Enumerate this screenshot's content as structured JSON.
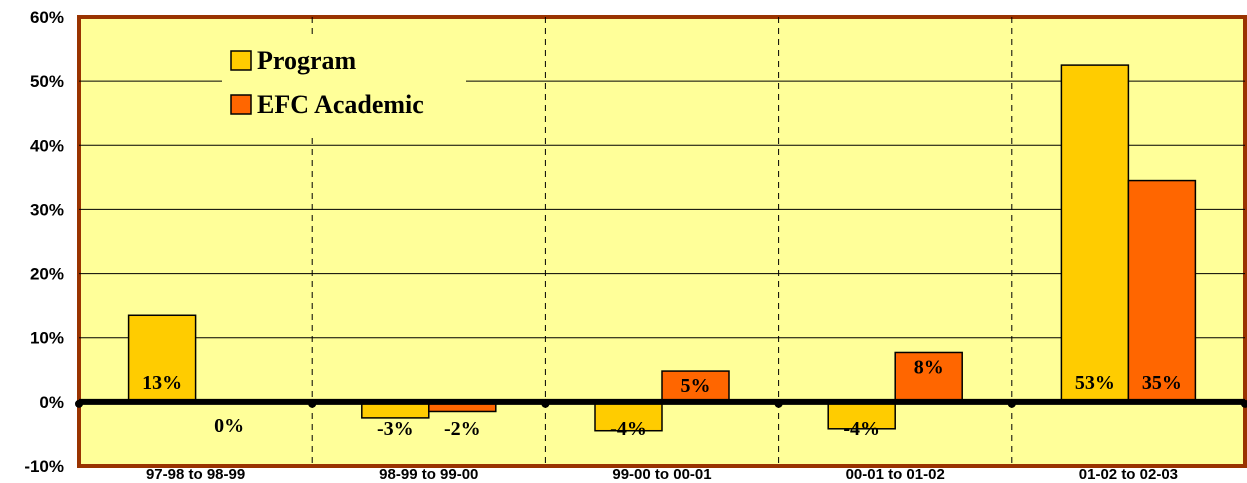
{
  "chart_data": {
    "type": "bar",
    "categories": [
      "97-98 to 98-99",
      "98-99 to 99-00",
      "99-00 to 00-01",
      "00-01 to 01-02",
      "01-02 to 02-03"
    ],
    "series": [
      {
        "name": "Program",
        "values": [
          13.5,
          -2.5,
          -4.5,
          -4.2,
          52.5
        ],
        "labels": [
          "13%",
          "-3%",
          "-4%",
          "-4%",
          "53%"
        ],
        "color": "#FFCC00"
      },
      {
        "name": "EFC Academic",
        "values": [
          0,
          -1.5,
          4.8,
          7.7,
          34.5
        ],
        "labels": [
          "0%",
          "-2%",
          "5%",
          "8%",
          "35%"
        ],
        "color": "#FF6600"
      }
    ],
    "ylim": [
      -10,
      60
    ],
    "yticks": [
      "-10%",
      "0%",
      "10%",
      "20%",
      "30%",
      "40%",
      "50%",
      "60%"
    ],
    "ytick_values": [
      -10,
      0,
      10,
      20,
      30,
      40,
      50,
      60
    ],
    "title": "",
    "xlabel": "",
    "ylabel": "",
    "grid": true,
    "legend_position": "top-left",
    "plot_background": "#FFFF99",
    "frame_color": "#993300"
  }
}
